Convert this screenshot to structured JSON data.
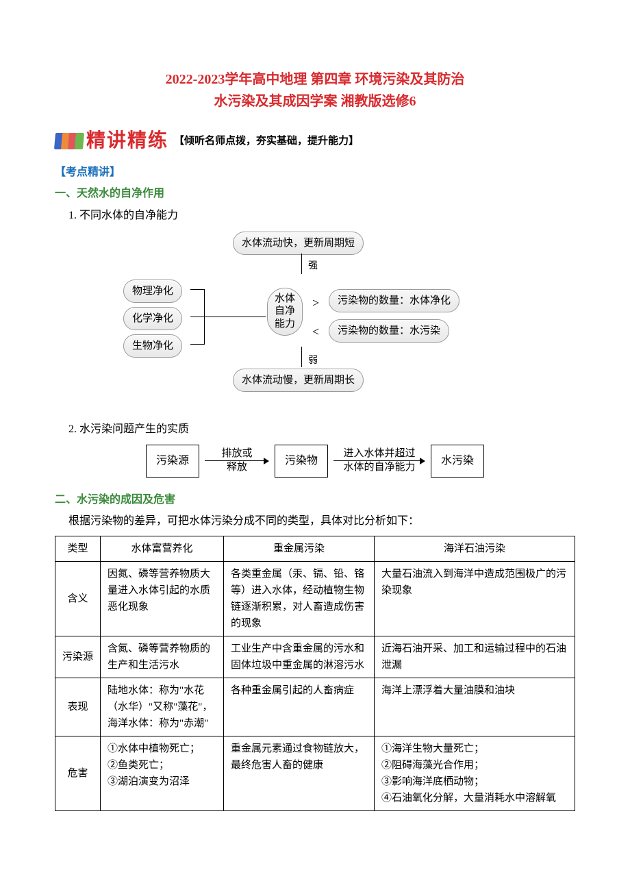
{
  "title": {
    "line1": "2022-2023学年高中地理 第四章 环境污染及其防治",
    "line2": "水污染及其成因学案 湘教版选修6",
    "color": "#d82a2e"
  },
  "banner": {
    "title": "精讲精练",
    "subtitle": "【倾听名师点拨，夯实基础，提升能力】",
    "book_colors": [
      "#3a65c7",
      "#f08a3a",
      "#e0575b",
      "#6cb84e"
    ]
  },
  "section1": {
    "label_exam": "【考点精讲】",
    "heading": "一、天然水的自净作用",
    "item1": "1. 不同水体的自净能力",
    "item2": "2. 水污染问题产生的实质"
  },
  "bubble": {
    "top": "水体流动快，更新周期短",
    "bottom": "水体流动慢，更新周期长",
    "strong": "强",
    "weak": "弱",
    "left1": "物理净化",
    "left2": "化学净化",
    "left3": "生物净化",
    "center_l1": "水体",
    "center_l2": "自净",
    "center_l3": "能力",
    "right1": "污染物的数量：水体净化",
    "right2": "污染物的数量：水污染",
    "gt": ">",
    "lt": "<"
  },
  "flow": {
    "b1": "污染源",
    "a1_top": "排放或",
    "a1_bot": "释放",
    "b2": "污染物",
    "a2_top": "进入水体并超过",
    "a2_bot": "水体的自净能力",
    "b3": "水污染"
  },
  "section2": {
    "heading": "二、水污染的成因及危害",
    "intro": "根据污染物的差异，可把水体污染分成不同的类型，具体对比分析如下："
  },
  "table": {
    "headers": [
      "类型",
      "水体富营养化",
      "重金属污染",
      "海洋石油污染"
    ],
    "rows": [
      {
        "head": "含义",
        "c1": "因氮、磷等营养物质大量进入水体引起的水质恶化现象",
        "c2": "各类重金属（汞、镉、铅、铬等）进入水体，经动植物生物链逐渐积累，对人畜造成伤害的现象",
        "c3": "大量石油流入到海洋中造成范围极广的污染现象"
      },
      {
        "head": "污染源",
        "c1": "含氮、磷等营养物质的生产和生活污水",
        "c2": "工业生产中含重金属的污水和固体垃圾中重金属的淋溶污水",
        "c3": "近海石油开采、加工和运输过程中的石油泄漏"
      },
      {
        "head": "表现",
        "c1": "陆地水体：称为\"水花（水华）\"又称\"藻花\"，海洋水体：称为\"赤潮\"",
        "c2": "各种重金属引起的人畜病症",
        "c3": "海洋上漂浮着大量油膜和油块"
      },
      {
        "head": "危害",
        "c1": "①水体中植物死亡；\n②鱼类死亡；\n③湖泊演变为沼泽",
        "c2": "重金属元素通过食物链放大，最终危害人畜的健康",
        "c3": "①海洋生物大量死亡；\n②阻碍海藻光合作用；\n③影响海洋底栖动物；\n④石油氧化分解，大量消耗水中溶解氧"
      }
    ]
  }
}
